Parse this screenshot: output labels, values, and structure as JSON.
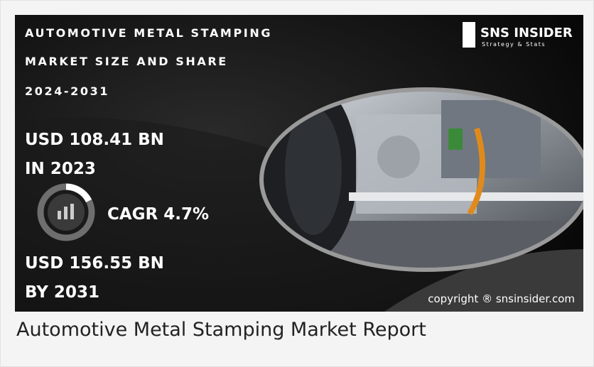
{
  "header": {
    "title_lines": [
      "AUTOMOTIVE METAL STAMPING",
      "MARKET SIZE AND SHARE",
      "2024-2031"
    ]
  },
  "logo": {
    "name": "SNS INSIDER",
    "tagline": "Strategy & Stats"
  },
  "stats": {
    "value_2023": "USD 108.41 BN",
    "label_2023": "IN 2023",
    "cagr": "CAGR 4.7%",
    "value_2031": "USD 156.55 BN",
    "label_2031": "BY 2031"
  },
  "copyright": "copyright ® snsinsider.com",
  "caption": "Automotive Metal Stamping Market Report"
}
